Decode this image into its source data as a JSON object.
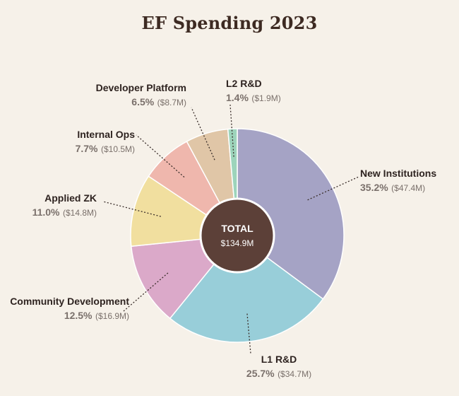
{
  "chart_data": {
    "type": "pie",
    "title": "EF Spending 2023",
    "center_label": "TOTAL",
    "center_value": "$134.9M",
    "slices": [
      {
        "name": "New Institutions",
        "pct_label": "35.2%",
        "amount_label": "($47.4M)",
        "value": 47.4,
        "color": "#a5a3c5"
      },
      {
        "name": "L1 R&D",
        "pct_label": "25.7%",
        "amount_label": "($34.7M)",
        "value": 34.7,
        "color": "#98ced9"
      },
      {
        "name": "Community Development",
        "pct_label": "12.5%",
        "amount_label": "($16.9M)",
        "value": 16.9,
        "color": "#dba9c9"
      },
      {
        "name": "Applied ZK",
        "pct_label": "11.0%",
        "amount_label": "($14.8M)",
        "value": 14.8,
        "color": "#f1df9f"
      },
      {
        "name": "Internal Ops",
        "pct_label": "7.7%",
        "amount_label": "($10.5M)",
        "value": 10.5,
        "color": "#efb7ad"
      },
      {
        "name": "Developer Platform",
        "pct_label": "6.5%",
        "amount_label": "($8.7M)",
        "value": 8.7,
        "color": "#e0c6a7"
      },
      {
        "name": "L2 R&D",
        "pct_label": "1.4%",
        "amount_label": "($1.9M)",
        "value": 1.9,
        "color": "#9dd4bb"
      }
    ],
    "colors": {
      "background": "#f6f1e9",
      "center": "#5c4038",
      "leader": "#3a2e2a"
    }
  }
}
